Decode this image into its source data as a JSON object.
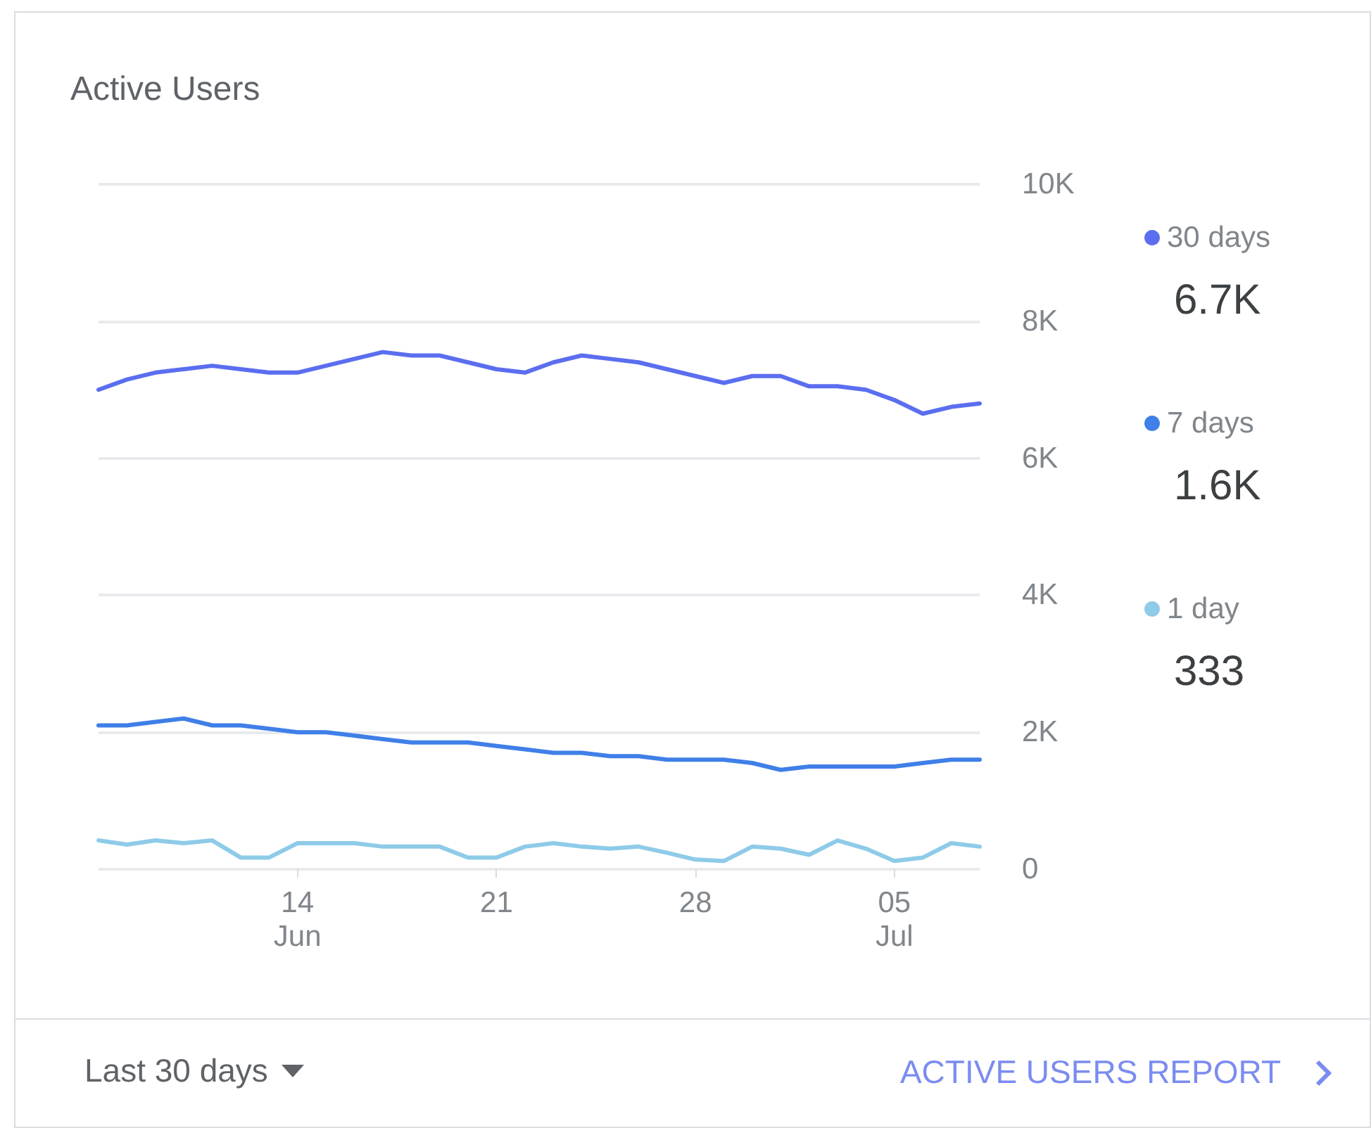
{
  "chart_data": {
    "type": "line",
    "title": "Active Users",
    "x": [
      "--06-07",
      "--06-08",
      "--06-09",
      "--06-10",
      "--06-11",
      "--06-12",
      "--06-13",
      "--06-14",
      "--06-15",
      "--06-16",
      "--06-17",
      "--06-18",
      "--06-19",
      "--06-20",
      "--06-21",
      "--06-22",
      "--06-23",
      "--06-24",
      "--06-25",
      "--06-26",
      "--06-27",
      "--06-28",
      "--06-29",
      "--06-30",
      "--07-01",
      "--07-02",
      "--07-03",
      "--07-04",
      "--07-05",
      "--07-06",
      "--07-07",
      "--07-08"
    ],
    "series": [
      {
        "name": "30 days",
        "color": "#5b6ef0",
        "values": [
          7000,
          7150,
          7250,
          7300,
          7350,
          7300,
          7250,
          7250,
          7350,
          7450,
          7550,
          7500,
          7500,
          7400,
          7300,
          7250,
          7400,
          7500,
          7450,
          7400,
          7300,
          7200,
          7100,
          7200,
          7200,
          7050,
          7050,
          7000,
          6850,
          6650,
          6750,
          6800
        ]
      },
      {
        "name": "7 days",
        "color": "#3f7fe8",
        "values": [
          2100,
          2100,
          2150,
          2200,
          2100,
          2100,
          2050,
          2000,
          2000,
          1950,
          1900,
          1850,
          1850,
          1850,
          1800,
          1750,
          1700,
          1700,
          1650,
          1650,
          1600,
          1600,
          1600,
          1550,
          1450,
          1500,
          1500,
          1500,
          1500,
          1550,
          1600,
          1600
        ]
      },
      {
        "name": "1 day",
        "color": "#8ecbe8",
        "values": [
          420,
          360,
          420,
          380,
          420,
          170,
          170,
          380,
          380,
          380,
          330,
          330,
          330,
          170,
          170,
          330,
          380,
          330,
          300,
          330,
          240,
          140,
          120,
          330,
          300,
          210,
          420,
          300,
          120,
          170,
          380,
          330
        ]
      }
    ],
    "xlim": [
      "--06-07",
      "--07-08"
    ],
    "xticks": [
      {
        "value": "--06-14",
        "label": "14\nJun"
      },
      {
        "value": "--06-21",
        "label": "21"
      },
      {
        "value": "--06-28",
        "label": "28"
      },
      {
        "value": "--07-05",
        "label": "05\nJul"
      }
    ],
    "ylim": [
      0,
      10000
    ],
    "yticks": [
      {
        "value": 0,
        "label": "0"
      },
      {
        "value": 2000,
        "label": "2K"
      },
      {
        "value": 4000,
        "label": "4K"
      },
      {
        "value": 6000,
        "label": "6K"
      },
      {
        "value": 8000,
        "label": "8K"
      },
      {
        "value": 10000,
        "label": "10K"
      }
    ],
    "grid": "y",
    "legend": "right",
    "annotations": [
      "6.7K",
      "1.6K",
      "333",
      "Last 30 days",
      "ACTIVE USERS REPORT"
    ]
  }
}
